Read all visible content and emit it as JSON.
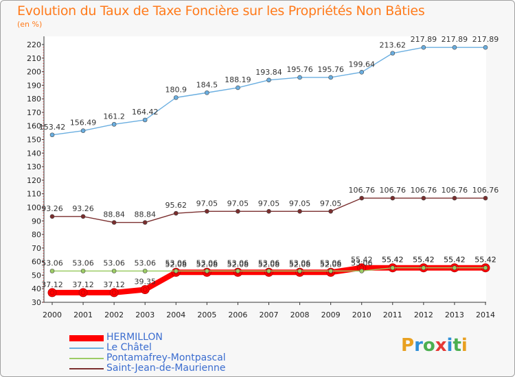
{
  "title": "Evolution du Taux de Taxe Foncière sur les Propriétés Non Bâties",
  "unit": "(en %)",
  "logo": {
    "text": "Proxiti",
    "letters": [
      "P",
      "r",
      "o",
      "x",
      "i",
      "t",
      "i"
    ],
    "colors": [
      "#e8a020",
      "#2e8fd8",
      "#4caf50",
      "#e53935",
      "#2e8fd8",
      "#4caf50",
      "#e8a020"
    ]
  },
  "chart_data": {
    "type": "line",
    "x": [
      "2000",
      "2001",
      "2002",
      "2003",
      "2004",
      "2005",
      "2006",
      "2007",
      "2008",
      "2009",
      "2010",
      "2011",
      "2012",
      "2013",
      "2014"
    ],
    "ylim": [
      30,
      220
    ],
    "yticks": [
      30,
      40,
      50,
      60,
      70,
      80,
      90,
      100,
      110,
      120,
      130,
      140,
      150,
      160,
      170,
      180,
      190,
      200,
      210,
      220
    ],
    "grid": false,
    "legend_position": "bottom-left",
    "series": [
      {
        "name": "HERMILLON",
        "color": "#ff0000",
        "values": [
          37.12,
          37.12,
          37.12,
          39.35,
          52.08,
          52.08,
          52.08,
          52.08,
          52.08,
          52.08,
          55.42,
          55.42,
          55.42,
          55.42,
          55.42
        ],
        "labels": [
          "37.12",
          "37.12",
          "37.12",
          "39.35",
          "52.08",
          "52.08",
          "52.08",
          "52.08",
          "52.08",
          "52.08",
          "55.42",
          "55.42",
          "55.42",
          "55.42",
          "55.42"
        ]
      },
      {
        "name": "Le Châtel",
        "color": "#6aaee0",
        "values": [
          153.42,
          156.49,
          161.2,
          164.42,
          180.9,
          184.5,
          188.19,
          193.84,
          195.76,
          195.76,
          199.64,
          213.62,
          217.89,
          217.89,
          217.89
        ],
        "labels": [
          "153.42",
          "156.49",
          "161.2",
          "164.42",
          "180.9",
          "184.5",
          "188.19",
          "193.84",
          "195.76",
          "195.76",
          "199.64",
          "213.62",
          "217.89",
          "217.89",
          "217.89"
        ]
      },
      {
        "name": "Pontamafrey-Montpascal",
        "color": "#9ccc65",
        "values": [
          53.06,
          53.06,
          53.06,
          53.06,
          53.06,
          53.06,
          53.06,
          53.06,
          53.06,
          53.06,
          53.06,
          55.42,
          55.42,
          55.42,
          55.42
        ],
        "labels": [
          "53.06",
          "53.06",
          "53.06",
          "53.06",
          "53.06",
          "53.06",
          "53.06",
          "53.06",
          "53.06",
          "53.06",
          "53.06",
          "55.42",
          "55.42",
          "55.42",
          "55.42"
        ]
      },
      {
        "name": "Saint-Jean-de-Maurienne",
        "color": "#7a2e2e",
        "values": [
          93.26,
          93.26,
          88.84,
          88.84,
          95.62,
          97.05,
          97.05,
          97.05,
          97.05,
          97.05,
          106.76,
          106.76,
          106.76,
          106.76,
          106.76
        ],
        "labels": [
          "93.26",
          "93.26",
          "88.84",
          "88.84",
          "95.62",
          "97.05",
          "97.05",
          "97.05",
          "97.05",
          "97.05",
          "106.76",
          "106.76",
          "106.76",
          "106.76",
          "106.76"
        ]
      }
    ]
  }
}
